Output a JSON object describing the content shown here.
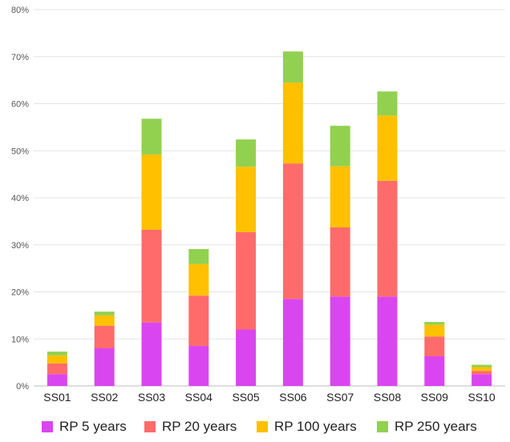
{
  "chart_data": {
    "type": "bar",
    "stacked": true,
    "categories": [
      "SS01",
      "SS02",
      "SS03",
      "SS04",
      "SS05",
      "SS06",
      "SS07",
      "SS08",
      "SS09",
      "SS10"
    ],
    "series": [
      {
        "name": "RP 5 years",
        "color": "#d946ef",
        "values": [
          2.5,
          8.0,
          13.5,
          8.5,
          12.0,
          18.5,
          19.0,
          19.0,
          6.3,
          2.5
        ]
      },
      {
        "name": "RP 20 years",
        "color": "#ff6b6b",
        "values": [
          2.3,
          4.8,
          19.7,
          10.7,
          20.7,
          28.8,
          14.7,
          24.6,
          4.2,
          0.7
        ]
      },
      {
        "name": "RP 100 years",
        "color": "#ffc000",
        "values": [
          1.7,
          2.2,
          16.0,
          6.7,
          13.9,
          17.2,
          13.0,
          13.9,
          2.5,
          0.8
        ]
      },
      {
        "name": "RP 250 years",
        "color": "#92d050",
        "values": [
          0.8,
          0.8,
          7.6,
          3.2,
          5.8,
          6.6,
          8.6,
          5.1,
          0.6,
          0.5
        ]
      }
    ],
    "y_ticks": [
      "0%",
      "10%",
      "20%",
      "30%",
      "40%",
      "50%",
      "60%",
      "70%",
      "80%"
    ],
    "ylim": [
      0,
      80
    ],
    "grid": true,
    "legend_position": "bottom"
  }
}
